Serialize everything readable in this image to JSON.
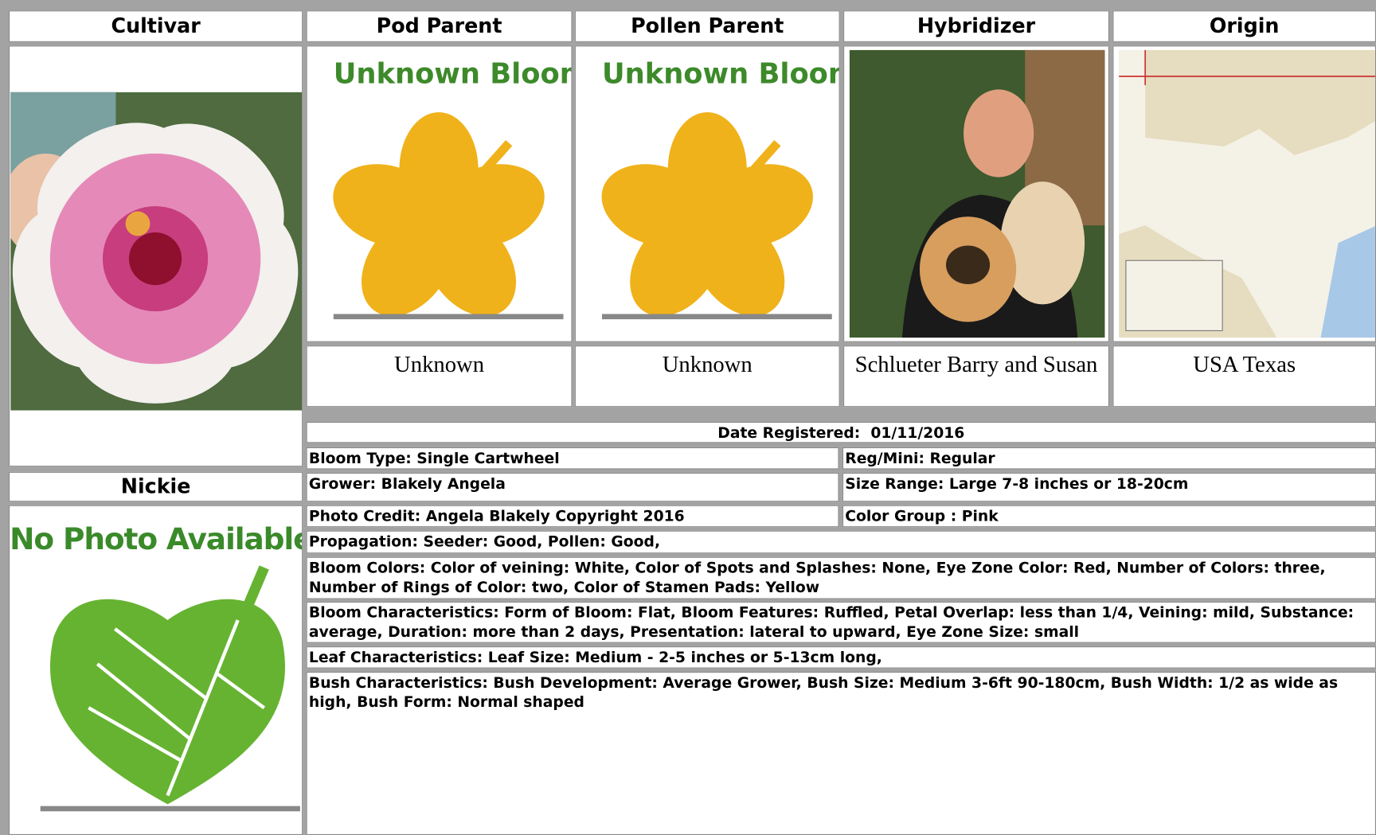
{
  "table": {
    "headers": [
      "Cultivar",
      "Pod Parent",
      "Pollen Parent",
      "Hybridizer",
      "Origin"
    ],
    "cultivar": {
      "name": "Nickie",
      "placeholder_text": "No Photo Available"
    },
    "pod_parent": {
      "image_text": "Unknown Bloom",
      "name": "Unknown"
    },
    "pollen_parent": {
      "image_text": "Unknown Bloom",
      "name": "Unknown"
    },
    "hybridizer": "Schlueter Barry and Susan",
    "origin": "USA Texas"
  },
  "details": {
    "date_registered": {
      "label": "Date Registered:",
      "value": "01/11/2016"
    },
    "bloom_type": "Bloom Type: Single Cartwheel",
    "reg_mini": "Reg/Mini: Regular",
    "grower": "Grower: Blakely Angela",
    "size_range": "Size Range: Large 7-8 inches or 18-20cm",
    "photo_credit": "Photo Credit: Angela Blakely Copyright 2016",
    "color_group": "Color Group : Pink",
    "propagation": "Propagation: Seeder: Good, Pollen: Good,",
    "bloom_colors": "Bloom Colors: Color of veining: White, Color of Spots and Splashes: None, Eye Zone Color: Red, Number of Colors: three, Number of Rings of Color: two, Color of Stamen Pads: Yellow",
    "bloom_characteristics": "Bloom Characteristics: Form of Bloom: Flat, Bloom Features: Ruffled, Petal Overlap: less than 1/4, Veining: mild, Substance: average, Duration: more than 2 days, Presentation: lateral to upward, Eye Zone Size: small",
    "leaf_characteristics": "Leaf Characteristics: Leaf Size: Medium - 2-5 inches or 5-13cm long,",
    "bush_characteristics": "Bush Characteristics: Bush Development: Average Grower, Bush Size: Medium 3-6ft 90-180cm, Bush Width: 1/2 as wide as high, Bush Form: Normal shaped"
  }
}
